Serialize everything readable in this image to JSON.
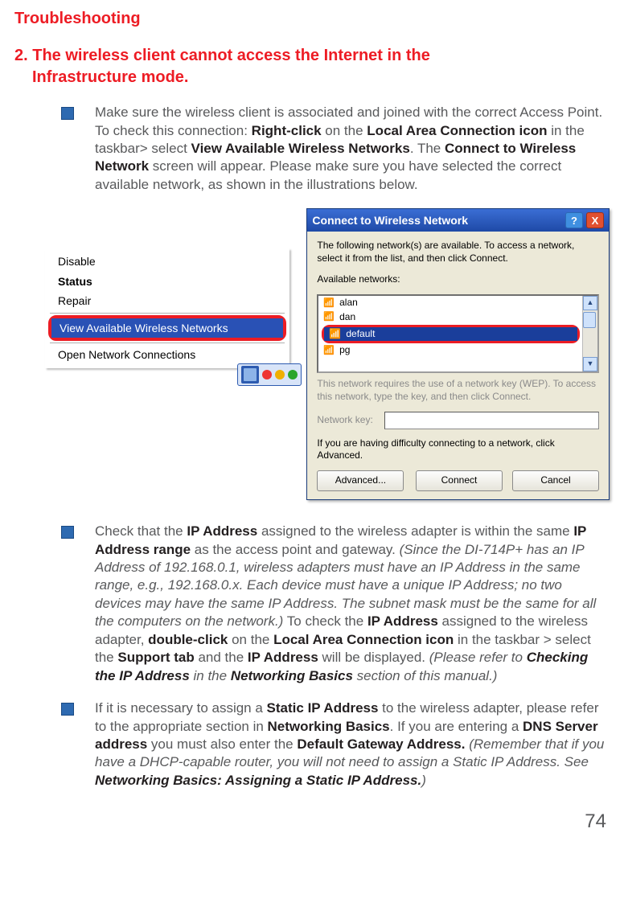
{
  "heading": "Troubleshooting",
  "subheading_l1": "2. The wireless client cannot access the Internet in the",
  "subheading_l2": "Infrastructure mode.",
  "bullet1": {
    "pre": "Make sure the wireless client is associated and joined with the correct Access Point.  To check this connection:  ",
    "b1": "Right-click",
    "mid1": " on the ",
    "b2": "Local Area Connection icon",
    "mid2": " in the taskbar> select ",
    "b3": "View Available Wireless Networks",
    "mid3": ".  The ",
    "b4": "Connect to Wireless Network",
    "post": " screen will appear.  Please make sure you have selected the correct available network, as shown in the illustrations below."
  },
  "ctx": {
    "disable": "Disable",
    "status": "Status",
    "repair": "Repair",
    "view": "View Available Wireless Networks",
    "open": "Open Network Connections"
  },
  "dialog": {
    "title": "Connect to Wireless Network",
    "intro": "The following network(s) are available. To access a network, select it from the list, and then click Connect.",
    "avail_label": "Available networks:",
    "items": {
      "a": "alan",
      "b": "dan",
      "sel": "default",
      "c": "pg"
    },
    "gray_note": "This network requires the use of a network key (WEP). To access this network, type the key, and then click Connect.",
    "key_label": "Network key:",
    "adv_note": "If you are having difficulty connecting to a network, click Advanced.",
    "btn_adv": "Advanced...",
    "btn_connect": "Connect",
    "btn_cancel": "Cancel",
    "help": "?",
    "close": "X"
  },
  "bullet2": {
    "t1": "Check that the ",
    "b1": "IP Address",
    "t2": " assigned to the wireless adapter is within the same ",
    "b2": "IP Address range",
    "t3": " as the access point and gateway.  ",
    "i1": "(Since the DI-714P+ has an IP Address of 192.168.0.1, wireless adapters must have an IP Address in the same range, e.g., 192.168.0.x.  Each device must have a unique IP Address; no two devices may have the same IP Address. The subnet mask must be the same for all the computers on the network.)",
    "t4": "  To check the ",
    "b3": "IP Address",
    "t5": " assigned to the wireless adapter, ",
    "b4": "double-click",
    "t6": " on the ",
    "b5": "Local Area Connection icon",
    "t7": " in the taskbar > select the ",
    "b6": "Support tab",
    "t8": " and the ",
    "b7": "IP Address",
    "t9": " will be displayed.  ",
    "i2a": "(Please refer to ",
    "i2b": "Checking the IP Address",
    "i2c": " in the ",
    "i2d": "Networking Basics",
    "i2e": " section of this manual.)"
  },
  "bullet3": {
    "t1": "If it is necessary to assign a ",
    "b1": "Static IP Address",
    "t2": " to the wireless adapter, please refer to the appropriate section in ",
    "b2": "Networking Basics",
    "t3": ".  If you are entering a ",
    "b3": "DNS Server address",
    "t4": " you must also enter the ",
    "b4": "Default Gateway Address.",
    "t5": "  ",
    "i1a": "(Remember that if you have a DHCP-capable router, you will not need to assign a Static IP Address.  See  ",
    "i1b": "Networking Basics: Assigning a Static IP Address.",
    "i1c": ")"
  },
  "page": "74"
}
